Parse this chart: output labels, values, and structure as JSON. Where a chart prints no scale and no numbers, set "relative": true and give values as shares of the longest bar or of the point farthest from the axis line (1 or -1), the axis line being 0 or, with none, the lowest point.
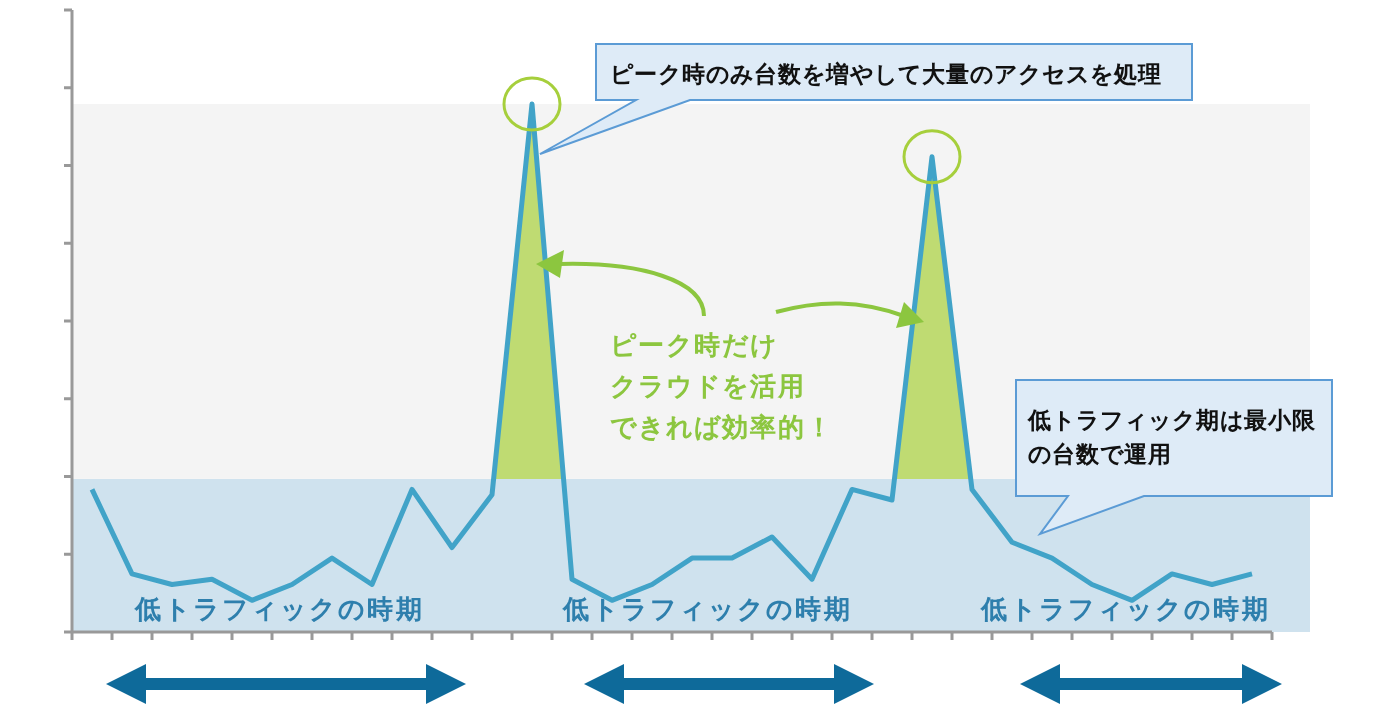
{
  "chart_data": {
    "type": "line",
    "relative": true,
    "categories": [
      null,
      null,
      null,
      null,
      null,
      null,
      null,
      null,
      null,
      null,
      null,
      null,
      null,
      null,
      null,
      null,
      null,
      null,
      null,
      null,
      null,
      null,
      null,
      null,
      null,
      null,
      null,
      null,
      null,
      null
    ],
    "series": [
      {
        "color": "#41a3c8",
        "values": [
          0.27,
          0.11,
          0.09,
          0.1,
          0.06,
          0.09,
          0.14,
          0.09,
          0.27,
          0.16,
          0.26,
          1,
          0.1,
          0.06,
          0.09,
          0.14,
          0.14,
          0.18,
          0.1,
          0.27,
          0.25,
          0.9,
          0.27,
          0.17,
          0.14,
          0.09,
          0.06,
          0.11,
          0.09,
          0.11
        ]
      }
    ],
    "bands": [
      {
        "axis": "y",
        "from": 0,
        "to": 0.29,
        "color": "#cfe2ee"
      },
      {
        "axis": "y",
        "from": 0.29,
        "to": 1,
        "color": "#f4f4f4"
      }
    ],
    "annotations": [
      "ピーク時のみ台数を増やして大量のアクセスを処理",
      "ピーク時だけ",
      "クラウドを活用",
      "できれば効率的！",
      "低トラフィック期は最小限の台数で運用",
      "低トラフィックの時期",
      "低トラフィックの時期",
      "低トラフィックの時期"
    ],
    "grid": false,
    "marker": "none",
    "line_style": "solid"
  }
}
